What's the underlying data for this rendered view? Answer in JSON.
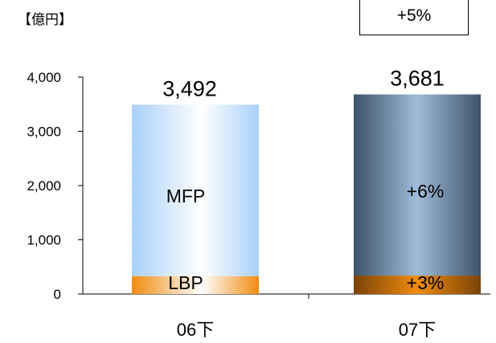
{
  "unit_label": "【億円】",
  "growth_box": "+5%",
  "chart_data": {
    "type": "bar",
    "stacked": true,
    "categories": [
      "06下",
      "07下"
    ],
    "series": [
      {
        "name": "LBP",
        "values": [
          330,
          340
        ],
        "color": "#f08c10"
      },
      {
        "name": "MFP",
        "values": [
          3162,
          3341
        ],
        "color": "#a8d0f8"
      }
    ],
    "totals": [
      3492,
      3681
    ],
    "total_labels": [
      "3,492",
      "3,681"
    ],
    "segment_labels": [
      {
        "category": "06下",
        "series": "MFP",
        "text": "MFP"
      },
      {
        "category": "06下",
        "series": "LBP",
        "text": "LBP"
      },
      {
        "category": "07下",
        "series": "MFP",
        "text": "+6%"
      },
      {
        "category": "07下",
        "series": "LBP",
        "text": "+3%"
      }
    ],
    "ylim": [
      0,
      4000
    ],
    "yticks": [
      0,
      1000,
      2000,
      3000,
      4000
    ],
    "ytick_labels": [
      "0",
      "1,000",
      "2,000",
      "3,000",
      "4,000"
    ],
    "grid": false,
    "legend": "none"
  }
}
